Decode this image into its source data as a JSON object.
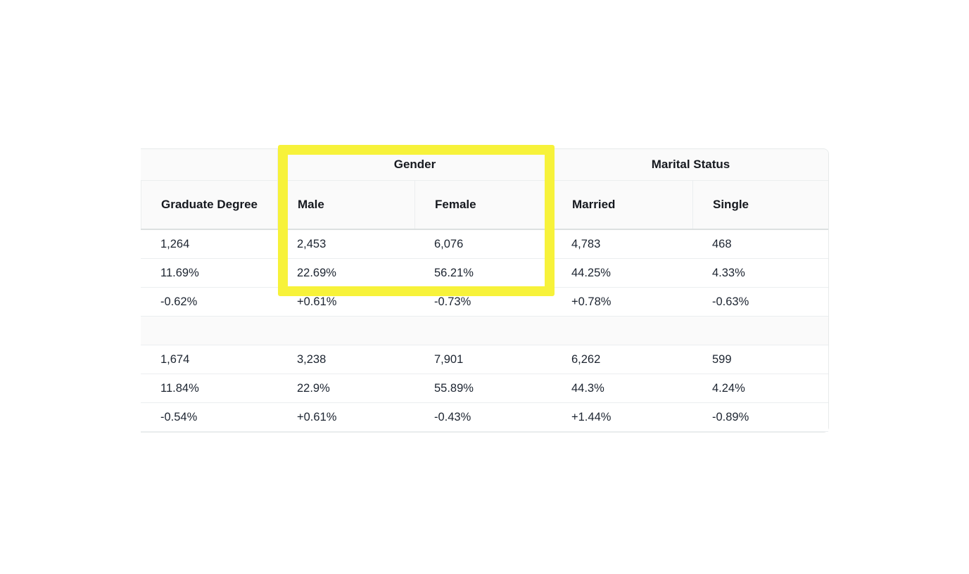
{
  "table": {
    "groups": [
      {
        "label": "Gender"
      },
      {
        "label": "Marital Status"
      }
    ],
    "columns": [
      "Graduate Degree",
      "Male",
      "Female",
      "Married",
      "Single"
    ],
    "rows": [
      {
        "cells": [
          "1,264",
          "2,453",
          "6,076",
          "4,783",
          "468"
        ]
      },
      {
        "cells": [
          "11.69%",
          "22.69%",
          "56.21%",
          "44.25%",
          "4.33%"
        ]
      },
      {
        "cells": [
          "-0.62%",
          "+0.61%",
          "-0.73%",
          "+0.78%",
          "-0.63%"
        ]
      },
      {
        "spacer": true
      },
      {
        "cells": [
          "1,674",
          "3,238",
          "7,901",
          "6,262",
          "599"
        ]
      },
      {
        "cells": [
          "11.84%",
          "22.9%",
          "55.89%",
          "44.3%",
          "4.24%"
        ]
      },
      {
        "cells": [
          "-0.54%",
          "+0.61%",
          "-0.43%",
          "+1.44%",
          "-0.89%"
        ]
      }
    ]
  },
  "highlight": {
    "color": "#f7f23a"
  },
  "colors": {
    "header_background": "#fafafa",
    "row_border": "#ebeef0",
    "header_text": "#16191f",
    "data_text": "#1c2430",
    "page_background": "#ffffff"
  }
}
